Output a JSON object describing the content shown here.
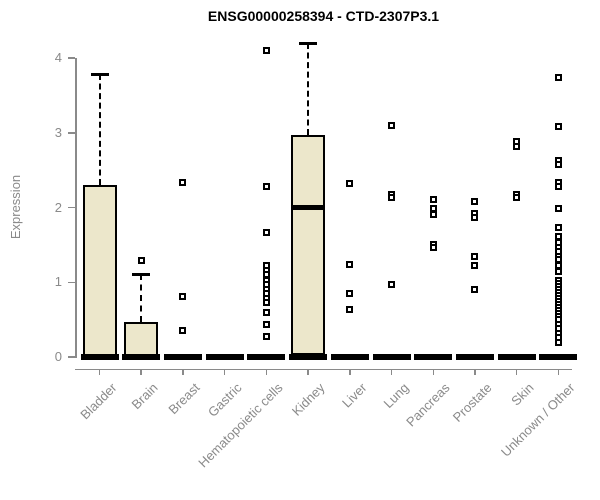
{
  "window": {
    "background": "#ffffff"
  },
  "chart_data": {
    "type": "boxplot",
    "title": "ENSG00000258394 - CTD-2307P3.1",
    "ylabel": "Expression",
    "xlabel": "",
    "ylim": [
      0,
      4.2
    ],
    "yticks": [
      0,
      1,
      2,
      3,
      4
    ],
    "grid": false,
    "legend": null,
    "styles": {
      "box_fill": "#ECE7CB",
      "box_border": "#000000",
      "median_color": "#000000",
      "whisker_style": "dashed",
      "outlier_marker": "open-square",
      "axis_color": "#8A8A8A",
      "tick_label_color": "#8A8A8A",
      "title_color": "#000000"
    },
    "categories": [
      "Bladder",
      "Brain",
      "Breast",
      "Gastric",
      "Hematopoietic cells",
      "Kidney",
      "Liver",
      "Lung",
      "Pancreas",
      "Prostate",
      "Skin",
      "Unknown / Other"
    ],
    "series": [
      {
        "name": "Bladder",
        "q1": 0,
        "median": 0,
        "q3": 2.3,
        "whisker_low": 0,
        "whisker_high": 3.78,
        "outliers": []
      },
      {
        "name": "Brain",
        "q1": 0,
        "median": 0,
        "q3": 0.47,
        "whisker_low": 0,
        "whisker_high": 1.11,
        "outliers": [
          1.29
        ]
      },
      {
        "name": "Breast",
        "q1": 0,
        "median": 0,
        "q3": 0,
        "whisker_low": 0,
        "whisker_high": 0,
        "outliers": [
          2.33,
          0.81,
          0.35
        ]
      },
      {
        "name": "Gastric",
        "q1": 0,
        "median": 0,
        "q3": 0,
        "whisker_low": 0,
        "whisker_high": 0,
        "outliers": []
      },
      {
        "name": "Hematopoietic cells",
        "q1": 0,
        "median": 0,
        "q3": 0,
        "whisker_low": 0,
        "whisker_high": 0,
        "outliers": [
          4.1,
          2.28,
          1.67,
          1.23,
          1.16,
          1.1,
          1.03,
          0.97,
          0.9,
          0.85,
          0.78,
          0.73,
          0.6,
          0.43,
          0.27
        ]
      },
      {
        "name": "Kidney",
        "q1": 0.02,
        "median": 2.0,
        "q3": 2.97,
        "whisker_low": 0.02,
        "whisker_high": 4.2,
        "outliers": []
      },
      {
        "name": "Liver",
        "q1": 0,
        "median": 0,
        "q3": 0,
        "whisker_low": 0,
        "whisker_high": 0,
        "outliers": [
          2.32,
          1.24,
          0.85,
          0.63
        ]
      },
      {
        "name": "Lung",
        "q1": 0,
        "median": 0,
        "q3": 0,
        "whisker_low": 0,
        "whisker_high": 0,
        "outliers": [
          3.1,
          2.18,
          2.14,
          0.97
        ]
      },
      {
        "name": "Pancreas",
        "q1": 0,
        "median": 0,
        "q3": 0,
        "whisker_low": 0,
        "whisker_high": 0,
        "outliers": [
          2.11,
          1.99,
          1.9,
          1.5,
          1.46
        ]
      },
      {
        "name": "Prostate",
        "q1": 0,
        "median": 0,
        "q3": 0,
        "whisker_low": 0,
        "whisker_high": 0,
        "outliers": [
          2.08,
          1.92,
          1.86,
          1.34,
          1.23,
          0.9
        ]
      },
      {
        "name": "Skin",
        "q1": 0,
        "median": 0,
        "q3": 0,
        "whisker_low": 0,
        "whisker_high": 0,
        "outliers": [
          2.88,
          2.81,
          2.17,
          2.13
        ]
      },
      {
        "name": "Unknown / Other",
        "q1": 0,
        "median": 0,
        "q3": 0,
        "whisker_low": 0,
        "whisker_high": 0,
        "outliers": [
          3.74,
          3.09,
          2.63,
          2.58,
          2.33,
          2.28,
          1.99,
          1.73,
          1.61,
          1.53,
          1.47,
          1.41,
          1.35,
          1.3,
          1.23,
          1.14,
          1.03,
          0.98,
          0.94,
          0.9,
          0.86,
          0.82,
          0.78,
          0.74,
          0.7,
          0.66,
          0.62,
          0.58,
          0.54,
          0.5,
          0.44,
          0.38,
          0.32,
          0.26,
          0.2
        ]
      }
    ]
  }
}
